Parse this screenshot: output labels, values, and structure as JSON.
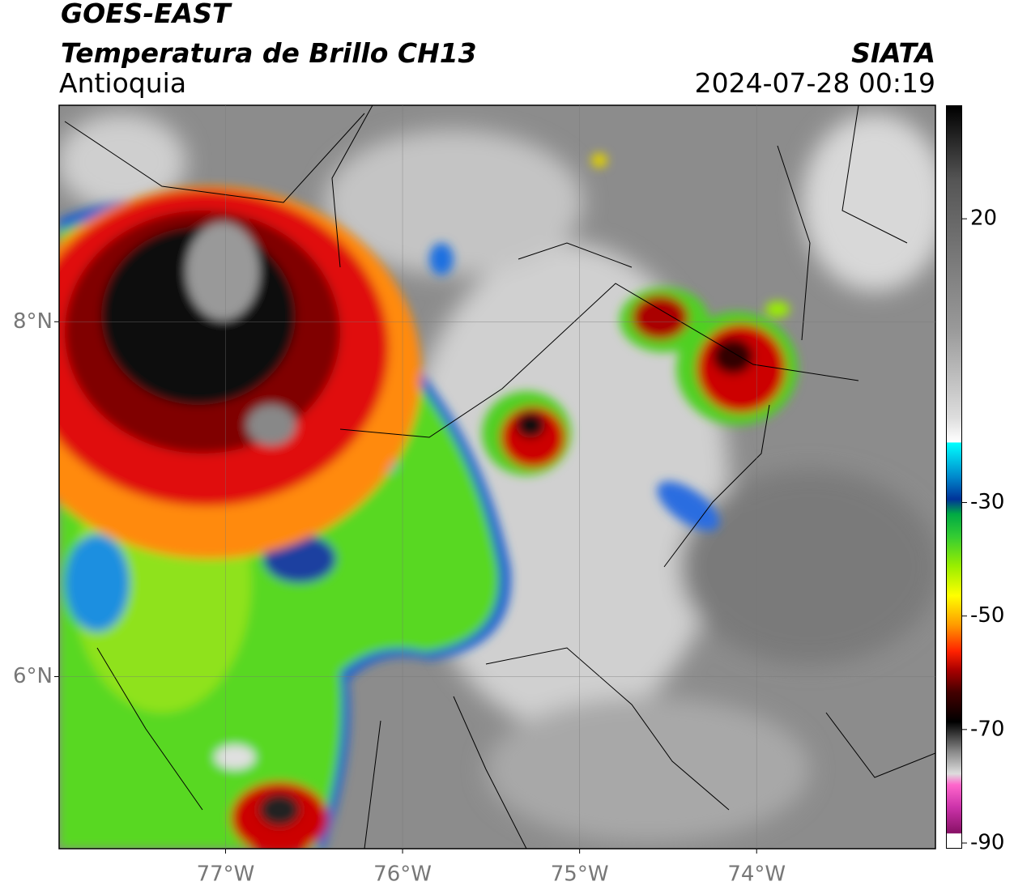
{
  "header": {
    "title": "GOES-EAST",
    "subtitle": "Temperatura de Brillo CH13",
    "region": "Antioquia",
    "source": "SIATA",
    "timestamp": "2024-07-28 00:19"
  },
  "map": {
    "lonlim": [
      -77.94,
      -72.99
    ],
    "latlim": [
      5.03,
      9.22
    ],
    "lon_ticks": [
      {
        "value": -77,
        "label": "77°W"
      },
      {
        "value": -76,
        "label": "76°W"
      },
      {
        "value": -75,
        "label": "75°W"
      },
      {
        "value": -74,
        "label": "74°W"
      }
    ],
    "lat_ticks": [
      {
        "value": 8,
        "label": "8°N"
      },
      {
        "value": 6,
        "label": "6°N"
      }
    ]
  },
  "colorbar": {
    "range": [
      -91,
      40
    ],
    "ticks": [
      20,
      -30,
      -50,
      -70,
      -90
    ]
  }
}
